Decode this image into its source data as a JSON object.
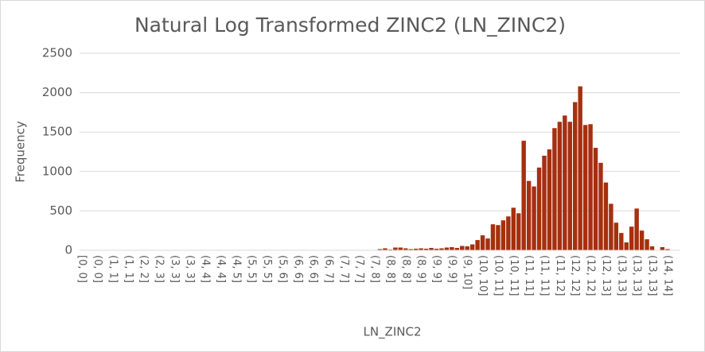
{
  "chart_data": {
    "type": "bar",
    "title": "Natural Log Transformed  ZINC2 (LN_ZINC2)",
    "x_label": "LN_ZINC2",
    "y_label": "Frequency",
    "color": "#a5300f",
    "grid": true,
    "ylim": [
      0,
      2500
    ],
    "yticks": [
      0,
      500,
      1000,
      1500,
      2000,
      2500
    ],
    "categories": [
      "[0, 0]",
      null,
      null,
      "(0, 0]",
      null,
      null,
      "(1, 1]",
      null,
      null,
      "(1, 1]",
      null,
      null,
      "(2, 2]",
      null,
      null,
      "(2, 3]",
      null,
      null,
      "(3, 3]",
      null,
      null,
      "(3, 3]",
      null,
      null,
      "(4, 4]",
      null,
      null,
      "(4, 4]",
      null,
      null,
      "(4, 5]",
      null,
      null,
      "(5, 5]",
      null,
      null,
      "(5, 5]",
      null,
      null,
      "(5, 6]",
      null,
      null,
      "(6, 6]",
      null,
      null,
      "(6, 6]",
      null,
      null,
      "(6, 7]",
      null,
      null,
      "(7, 7]",
      null,
      null,
      "(7, 7]",
      null,
      null,
      "(7, 8]",
      null,
      null,
      "(8, 8]",
      null,
      null,
      "(8, 8]",
      null,
      null,
      "(8, 9]",
      null,
      null,
      "(9, 9]",
      null,
      null,
      "(9, 9]",
      null,
      null,
      "(9, 10]",
      null,
      null,
      "(10, 10]",
      null,
      null,
      "(10, 11]",
      null,
      null,
      "(10, 11]",
      null,
      null,
      "(11, 11]",
      null,
      null,
      "(11, 11]",
      null,
      null,
      "(11, 12]",
      null,
      null,
      "(12, 12]",
      null,
      null,
      "(12, 12]",
      null,
      null,
      "(12, 13]",
      null,
      null,
      "(13, 13]",
      null,
      null,
      "(13, 13]",
      null,
      null,
      "(13, 13]",
      null,
      null,
      "(14, 14]",
      null,
      null
    ],
    "values": [
      0,
      0,
      0,
      0,
      0,
      0,
      0,
      0,
      0,
      0,
      0,
      0,
      0,
      0,
      0,
      0,
      0,
      0,
      0,
      0,
      0,
      0,
      0,
      0,
      0,
      0,
      0,
      0,
      0,
      0,
      0,
      0,
      0,
      0,
      0,
      0,
      0,
      0,
      0,
      0,
      0,
      0,
      0,
      0,
      0,
      0,
      0,
      0,
      0,
      0,
      0,
      0,
      0,
      0,
      0,
      0,
      0,
      5,
      15,
      25,
      10,
      35,
      35,
      25,
      15,
      20,
      25,
      20,
      30,
      20,
      25,
      35,
      40,
      30,
      55,
      50,
      75,
      130,
      190,
      150,
      330,
      320,
      380,
      430,
      540,
      470,
      1390,
      880,
      810,
      1050,
      1200,
      1280,
      1550,
      1630,
      1710,
      1630,
      1880,
      2080,
      1590,
      1600,
      1300,
      1110,
      860,
      590,
      350,
      220,
      100,
      300,
      530,
      250,
      140,
      50,
      0,
      40,
      15,
      0,
      0
    ]
  }
}
